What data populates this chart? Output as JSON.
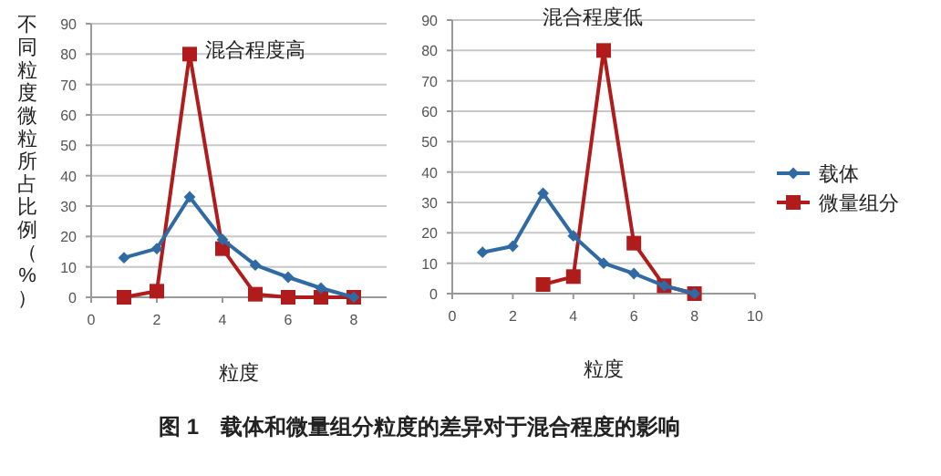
{
  "chart_data": [
    {
      "type": "line",
      "title": "混合程度高",
      "xlabel": "粒度",
      "ylabel": "不同粒度微粒所占比例（%）",
      "xlim": [
        0,
        9
      ],
      "xticks": [
        0,
        2,
        4,
        6,
        8
      ],
      "ylim": [
        0,
        90
      ],
      "yticks": [
        0,
        10,
        20,
        30,
        40,
        50,
        60,
        70,
        80,
        90
      ],
      "grid": "y",
      "legend": false,
      "series": [
        {
          "color": "#2f6aa3",
          "marker": "diamond",
          "x": [
            1,
            2,
            3,
            4,
            5,
            6,
            7,
            8
          ],
          "values": [
            13,
            16,
            33,
            19,
            10.6,
            6.6,
            3,
            0
          ]
        },
        {
          "color": "#b01c1c",
          "marker": "square",
          "x": [
            1,
            2,
            3,
            4,
            5,
            6,
            7,
            8
          ],
          "values": [
            0,
            2,
            80,
            16,
            1,
            0,
            0,
            0
          ]
        }
      ],
      "annotations": [
        "图 1　载体和微量组分粒度的差异对于混合程度的影响"
      ]
    },
    {
      "type": "line",
      "title": "混合程度低",
      "xlabel": "粒度",
      "xlim": [
        0,
        10
      ],
      "xticks": [
        0,
        2,
        4,
        6,
        8,
        10
      ],
      "ylim": [
        0,
        90
      ],
      "yticks": [
        0,
        10,
        20,
        30,
        40,
        50,
        60,
        70,
        80,
        90
      ],
      "grid": "y",
      "legend": "right",
      "series": [
        {
          "name": "载体",
          "color": "#2f6aa3",
          "marker": "diamond",
          "x": [
            1,
            2,
            3,
            4,
            5,
            6,
            7,
            8
          ],
          "values": [
            13.6,
            15.6,
            33,
            19,
            10,
            6.6,
            2.6,
            0
          ]
        },
        {
          "name": "微量组分",
          "color": "#b01c1c",
          "marker": "square",
          "x": [
            3,
            4,
            5,
            6,
            7,
            8
          ],
          "values": [
            3,
            5.6,
            80,
            16.6,
            2.6,
            0
          ]
        }
      ]
    }
  ]
}
